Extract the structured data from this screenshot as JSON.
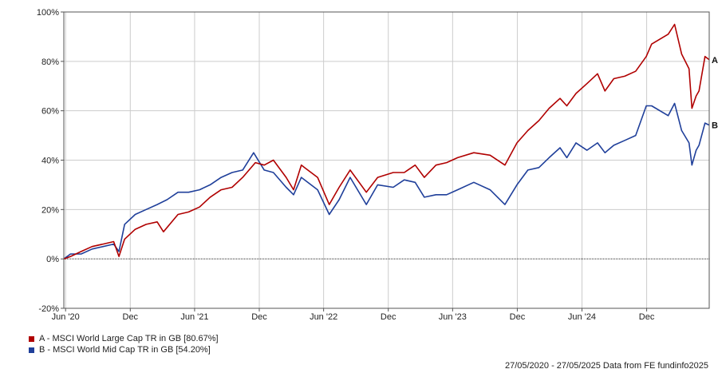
{
  "chart_data": {
    "type": "line",
    "ylim": [
      -20,
      100
    ],
    "y_ticks": [
      -20,
      0,
      20,
      40,
      60,
      80,
      100
    ],
    "y_tick_labels": [
      "-20%",
      "0%",
      "20%",
      "40%",
      "60%",
      "80%",
      "100%"
    ],
    "x_tick_dates": [
      "2020-06-01",
      "2020-12-01",
      "2021-06-01",
      "2021-12-01",
      "2022-06-01",
      "2022-12-01",
      "2023-06-01",
      "2023-12-01",
      "2024-06-01",
      "2024-12-01"
    ],
    "x_tick_labels": [
      "Jun '20",
      "Dec",
      "Jun '21",
      "Dec",
      "Jun '22",
      "Dec",
      "Jun '23",
      "Dec",
      "Jun '24",
      "Dec"
    ],
    "x_range": [
      "2020-05-27",
      "2025-05-27"
    ],
    "grid": true,
    "series": [
      {
        "name": "A - MSCI World Large Cap TR in GB [80.67%]",
        "end_label": "A",
        "color": "#b00000",
        "points": [
          [
            "2020-05-27",
            0
          ],
          [
            "2020-06-15",
            1
          ],
          [
            "2020-07-15",
            3
          ],
          [
            "2020-08-15",
            5
          ],
          [
            "2020-09-15",
            6
          ],
          [
            "2020-10-15",
            7
          ],
          [
            "2020-10-30",
            1
          ],
          [
            "2020-11-15",
            8
          ],
          [
            "2020-12-15",
            12
          ],
          [
            "2021-01-15",
            14
          ],
          [
            "2021-02-15",
            15
          ],
          [
            "2021-03-05",
            11
          ],
          [
            "2021-04-15",
            18
          ],
          [
            "2021-05-15",
            19
          ],
          [
            "2021-06-15",
            21
          ],
          [
            "2021-07-15",
            25
          ],
          [
            "2021-08-15",
            28
          ],
          [
            "2021-09-15",
            29
          ],
          [
            "2021-10-15",
            33
          ],
          [
            "2021-11-20",
            39
          ],
          [
            "2021-12-15",
            38
          ],
          [
            "2022-01-10",
            40
          ],
          [
            "2022-02-15",
            33
          ],
          [
            "2022-03-08",
            28
          ],
          [
            "2022-03-30",
            38
          ],
          [
            "2022-05-15",
            33
          ],
          [
            "2022-06-17",
            22
          ],
          [
            "2022-07-15",
            29
          ],
          [
            "2022-08-15",
            36
          ],
          [
            "2022-09-30",
            27
          ],
          [
            "2022-11-01",
            33
          ],
          [
            "2022-12-15",
            35
          ],
          [
            "2023-01-15",
            35
          ],
          [
            "2023-02-15",
            38
          ],
          [
            "2023-03-13",
            33
          ],
          [
            "2023-04-15",
            38
          ],
          [
            "2023-05-15",
            39
          ],
          [
            "2023-06-15",
            41
          ],
          [
            "2023-07-31",
            43
          ],
          [
            "2023-09-15",
            42
          ],
          [
            "2023-10-27",
            38
          ],
          [
            "2023-11-30",
            47
          ],
          [
            "2023-12-31",
            52
          ],
          [
            "2024-01-31",
            56
          ],
          [
            "2024-02-29",
            61
          ],
          [
            "2024-03-31",
            65
          ],
          [
            "2024-04-19",
            62
          ],
          [
            "2024-05-15",
            67
          ],
          [
            "2024-06-15",
            71
          ],
          [
            "2024-07-15",
            75
          ],
          [
            "2024-08-05",
            68
          ],
          [
            "2024-08-30",
            73
          ],
          [
            "2024-09-30",
            74
          ],
          [
            "2024-10-31",
            76
          ],
          [
            "2024-11-30",
            82
          ],
          [
            "2024-12-15",
            87
          ],
          [
            "2025-01-31",
            91
          ],
          [
            "2025-02-18",
            95
          ],
          [
            "2025-03-10",
            83
          ],
          [
            "2025-03-31",
            77
          ],
          [
            "2025-04-08",
            61
          ],
          [
            "2025-04-20",
            66
          ],
          [
            "2025-04-28",
            68
          ],
          [
            "2025-05-15",
            82
          ],
          [
            "2025-05-27",
            80.67
          ]
        ]
      },
      {
        "name": "B - MSCI World Mid Cap TR in GB [54.20%]",
        "end_label": "B",
        "color": "#1f3f9a",
        "points": [
          [
            "2020-05-27",
            0
          ],
          [
            "2020-06-15",
            2
          ],
          [
            "2020-07-15",
            2
          ],
          [
            "2020-08-15",
            4
          ],
          [
            "2020-09-15",
            5
          ],
          [
            "2020-10-15",
            6
          ],
          [
            "2020-10-30",
            3
          ],
          [
            "2020-11-15",
            14
          ],
          [
            "2020-12-15",
            18
          ],
          [
            "2021-01-15",
            20
          ],
          [
            "2021-02-15",
            22
          ],
          [
            "2021-03-15",
            24
          ],
          [
            "2021-04-15",
            27
          ],
          [
            "2021-05-15",
            27
          ],
          [
            "2021-06-15",
            28
          ],
          [
            "2021-07-15",
            30
          ],
          [
            "2021-08-15",
            33
          ],
          [
            "2021-09-15",
            35
          ],
          [
            "2021-10-15",
            36
          ],
          [
            "2021-11-15",
            43
          ],
          [
            "2021-12-15",
            36
          ],
          [
            "2022-01-10",
            35
          ],
          [
            "2022-02-15",
            29
          ],
          [
            "2022-03-08",
            26
          ],
          [
            "2022-03-30",
            33
          ],
          [
            "2022-05-15",
            28
          ],
          [
            "2022-06-17",
            18
          ],
          [
            "2022-07-15",
            24
          ],
          [
            "2022-08-15",
            33
          ],
          [
            "2022-09-30",
            22
          ],
          [
            "2022-11-01",
            30
          ],
          [
            "2022-12-15",
            29
          ],
          [
            "2023-01-15",
            32
          ],
          [
            "2023-02-15",
            31
          ],
          [
            "2023-03-13",
            25
          ],
          [
            "2023-04-15",
            26
          ],
          [
            "2023-05-15",
            26
          ],
          [
            "2023-06-15",
            28
          ],
          [
            "2023-07-31",
            31
          ],
          [
            "2023-09-15",
            28
          ],
          [
            "2023-10-27",
            22
          ],
          [
            "2023-11-30",
            30
          ],
          [
            "2023-12-31",
            36
          ],
          [
            "2024-01-31",
            37
          ],
          [
            "2024-02-29",
            41
          ],
          [
            "2024-03-31",
            45
          ],
          [
            "2024-04-19",
            41
          ],
          [
            "2024-05-15",
            47
          ],
          [
            "2024-06-15",
            44
          ],
          [
            "2024-07-15",
            47
          ],
          [
            "2024-08-05",
            43
          ],
          [
            "2024-08-30",
            46
          ],
          [
            "2024-09-30",
            48
          ],
          [
            "2024-10-31",
            50
          ],
          [
            "2024-11-30",
            62
          ],
          [
            "2024-12-15",
            62
          ],
          [
            "2025-01-31",
            58
          ],
          [
            "2025-02-18",
            63
          ],
          [
            "2025-03-10",
            52
          ],
          [
            "2025-03-31",
            47
          ],
          [
            "2025-04-08",
            38
          ],
          [
            "2025-04-20",
            44
          ],
          [
            "2025-04-28",
            46
          ],
          [
            "2025-05-15",
            55
          ],
          [
            "2025-05-27",
            54.2
          ]
        ]
      }
    ]
  },
  "footer": {
    "date_range": "27/05/2020 - 27/05/2025",
    "source": "Data from FE fundinfo2025"
  }
}
